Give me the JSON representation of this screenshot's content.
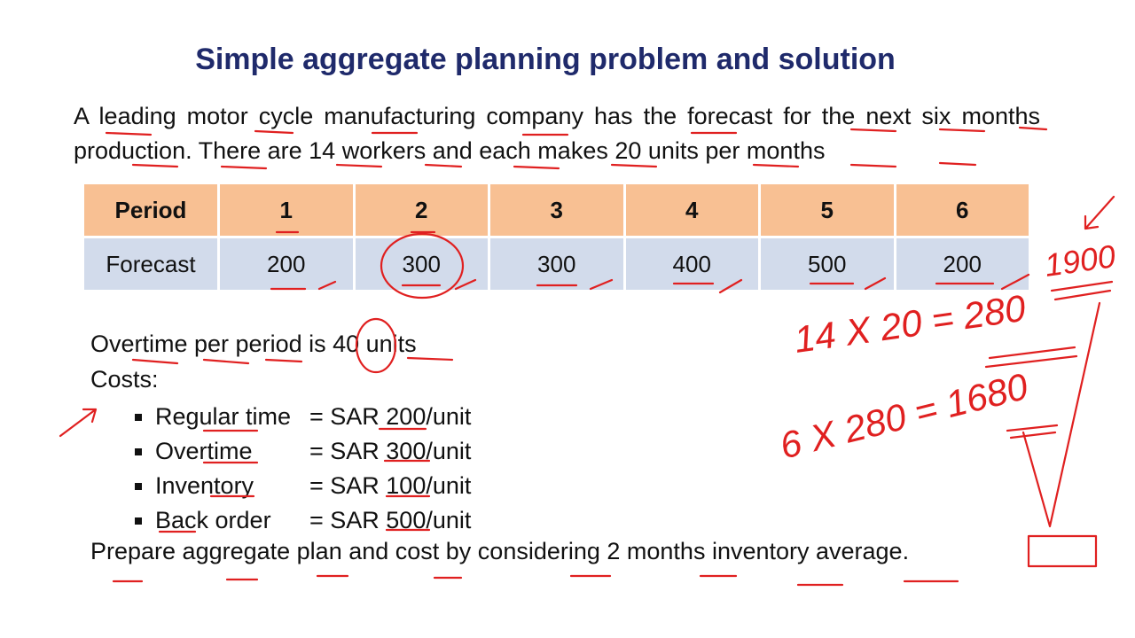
{
  "title": "Simple aggregate planning problem and solution",
  "intro": "A leading motor cycle manufacturing company has the forecast for the next six months production. There are 14 workers and each makes 20 units per months",
  "table": {
    "row_header": "Period",
    "periods": [
      "1",
      "2",
      "3",
      "4",
      "5",
      "6"
    ],
    "forecast_label": "Forecast",
    "forecast": [
      "200",
      "300",
      "300",
      "400",
      "500",
      "200"
    ]
  },
  "overtime_text": "Overtime per period is 40 units",
  "costs_label": "Costs:",
  "costs": [
    {
      "name": "Regular time",
      "value": "= SAR 200/unit"
    },
    {
      "name": "Overtime",
      "value": "= SAR 300/unit"
    },
    {
      "name": "Inventory",
      "value": "= SAR 100/unit"
    },
    {
      "name": "Back order",
      "value": "= SAR 500/unit"
    }
  ],
  "prepare_text": "Prepare aggregate plan and cost by considering 2 months inventory average.",
  "annotations": {
    "total": "1900",
    "calc1": "14 X 20 = 280",
    "calc2": "6 X 280 = 1680",
    "ink_color": "#e02020"
  }
}
